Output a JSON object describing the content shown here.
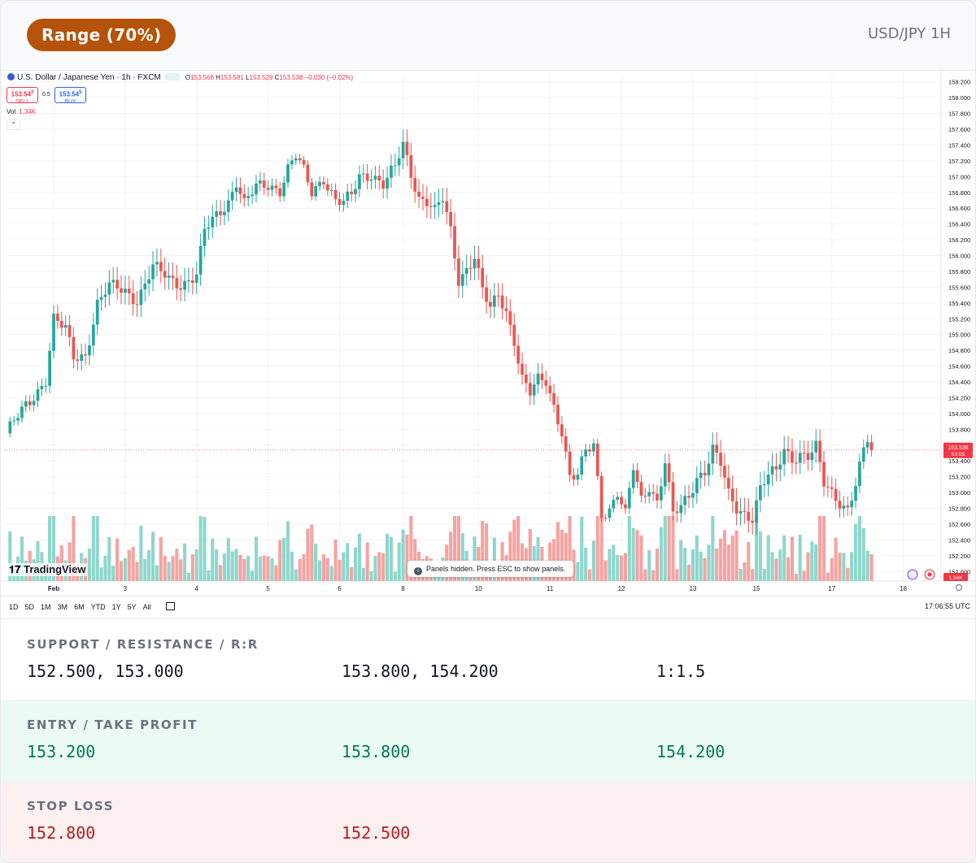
{
  "header": {
    "badge": "Range (70%)",
    "pair": "USD/JPY 1H"
  },
  "tv": {
    "symbol": "U.S. Dollar / Japanese Yen · 1h · FXCM",
    "ohlc": {
      "o": "153.568",
      "h": "153.581",
      "l": "153.529",
      "c": "153.538",
      "chg": "−0.030 (−0.02%)"
    },
    "sell_price": "153.54",
    "sell_sup": "0",
    "sell_label": "SELL",
    "spread": "0.5",
    "buy_price": "153.54",
    "buy_sup": "5",
    "buy_label": "BUY",
    "vol_label": "Vol",
    "vol_value": "1.34K",
    "logo_text": "TradingView",
    "panels_msg": "Panels hidden. Press ESC to show panels.",
    "ranges": [
      "1D",
      "5D",
      "1M",
      "3M",
      "6M",
      "YTD",
      "1Y",
      "5Y",
      "All"
    ],
    "clock": "17:06:55 UTC",
    "price_tag": "153.538",
    "price_tag_sub": "53:05",
    "vol_tag": "1.34K"
  },
  "colors": {
    "up": "#26a69a",
    "down": "#ef5350",
    "up_vol": "#8fd6cc",
    "down_vol": "#f5a3a1",
    "badge": "#b45309",
    "tp": "#047857",
    "sl": "#b91c1c"
  },
  "chart_data": {
    "type": "candlestick",
    "interval": "1h",
    "y_ticks": [
      "158.200",
      "158.000",
      "157.800",
      "157.600",
      "157.400",
      "157.200",
      "157.000",
      "156.800",
      "156.600",
      "156.400",
      "156.200",
      "156.000",
      "155.800",
      "155.600",
      "155.400",
      "155.200",
      "155.000",
      "154.800",
      "154.600",
      "154.400",
      "154.200",
      "154.000",
      "153.800",
      "153.600",
      "153.400",
      "153.200",
      "153.000",
      "152.800",
      "152.600",
      "152.400",
      "152.200",
      "152.000"
    ],
    "ylim": [
      151.9,
      158.3
    ],
    "x_ticks": [
      {
        "label": "Feb",
        "index": 12
      },
      {
        "label": "3",
        "index": 30
      },
      {
        "label": "4",
        "index": 48
      },
      {
        "label": "5",
        "index": 66
      },
      {
        "label": "6",
        "index": 84
      },
      {
        "label": "8",
        "index": 100
      },
      {
        "label": "10",
        "index": 119
      },
      {
        "label": "11",
        "index": 137
      },
      {
        "label": "12",
        "index": 155
      },
      {
        "label": "13",
        "index": 173
      },
      {
        "label": "15",
        "index": 189
      },
      {
        "label": "17",
        "index": 208
      },
      {
        "label": "18",
        "index": 226
      }
    ],
    "close_path": [
      [
        0,
        153.75
      ],
      [
        6,
        154.15
      ],
      [
        10,
        154.45
      ],
      [
        12,
        155.2
      ],
      [
        15,
        155.05
      ],
      [
        17,
        154.7
      ],
      [
        20,
        154.75
      ],
      [
        23,
        155.4
      ],
      [
        26,
        155.6
      ],
      [
        30,
        155.55
      ],
      [
        33,
        155.45
      ],
      [
        37,
        155.85
      ],
      [
        41,
        155.7
      ],
      [
        44,
        155.65
      ],
      [
        48,
        155.75
      ],
      [
        50,
        156.3
      ],
      [
        53,
        156.5
      ],
      [
        56,
        156.7
      ],
      [
        58,
        156.95
      ],
      [
        60,
        156.65
      ],
      [
        63,
        156.85
      ],
      [
        66,
        156.9
      ],
      [
        69,
        156.85
      ],
      [
        71,
        157.1
      ],
      [
        73,
        157.25
      ],
      [
        75,
        157.05
      ],
      [
        77,
        156.8
      ],
      [
        80,
        157.0
      ],
      [
        83,
        156.7
      ],
      [
        85,
        156.65
      ],
      [
        87,
        156.75
      ],
      [
        89,
        157.0
      ],
      [
        92,
        157.05
      ],
      [
        95,
        156.9
      ],
      [
        98,
        157.1
      ],
      [
        100,
        157.4
      ],
      [
        102,
        157.05
      ],
      [
        104,
        156.75
      ],
      [
        106,
        156.7
      ],
      [
        108,
        156.55
      ],
      [
        110,
        156.7
      ],
      [
        112,
        156.3
      ],
      [
        114,
        155.7
      ],
      [
        116,
        155.85
      ],
      [
        118,
        156.0
      ],
      [
        120,
        155.55
      ],
      [
        122,
        155.3
      ],
      [
        124,
        155.5
      ],
      [
        126,
        155.3
      ],
      [
        128,
        154.95
      ],
      [
        130,
        154.45
      ],
      [
        132,
        154.25
      ],
      [
        134,
        154.4
      ],
      [
        136,
        154.4
      ],
      [
        138,
        154.1
      ],
      [
        140,
        153.8
      ],
      [
        142,
        153.2
      ],
      [
        144,
        153.2
      ],
      [
        146,
        153.5
      ],
      [
        148,
        153.6
      ],
      [
        150,
        152.75
      ],
      [
        152,
        152.8
      ],
      [
        154,
        153.0
      ],
      [
        156,
        152.7
      ],
      [
        158,
        153.3
      ],
      [
        160,
        152.9
      ],
      [
        162,
        153.1
      ],
      [
        164,
        152.9
      ],
      [
        166,
        153.4
      ],
      [
        168,
        152.7
      ],
      [
        170,
        152.8
      ],
      [
        172,
        152.95
      ],
      [
        174,
        153.2
      ],
      [
        176,
        153.3
      ],
      [
        178,
        153.55
      ],
      [
        180,
        153.35
      ],
      [
        182,
        152.95
      ],
      [
        184,
        152.8
      ],
      [
        186,
        152.75
      ],
      [
        188,
        152.7
      ],
      [
        190,
        153.05
      ],
      [
        192,
        153.2
      ],
      [
        194,
        153.25
      ],
      [
        196,
        153.55
      ],
      [
        198,
        153.45
      ],
      [
        200,
        153.5
      ],
      [
        202,
        153.45
      ],
      [
        204,
        153.55
      ],
      [
        206,
        153.1
      ],
      [
        208,
        153.0
      ],
      [
        210,
        152.9
      ],
      [
        212,
        152.8
      ],
      [
        214,
        153.1
      ],
      [
        216,
        153.5
      ],
      [
        217,
        153.65
      ],
      [
        218,
        153.54
      ]
    ],
    "last_price": 153.538,
    "volume_ylim": [
      0,
      1.6
    ],
    "volume_unit": "K"
  },
  "sections": {
    "sr_title": "SUPPORT / RESISTANCE / R:R",
    "support": "152.500, 153.000",
    "resistance": "153.800, 154.200",
    "rr": "1:1.5",
    "tp_title": "ENTRY / TAKE PROFIT",
    "entry": "153.200",
    "tp1": "153.800",
    "tp2": "154.200",
    "sl_title": "STOP LOSS",
    "sl1": "152.800",
    "sl2": "152.500"
  }
}
